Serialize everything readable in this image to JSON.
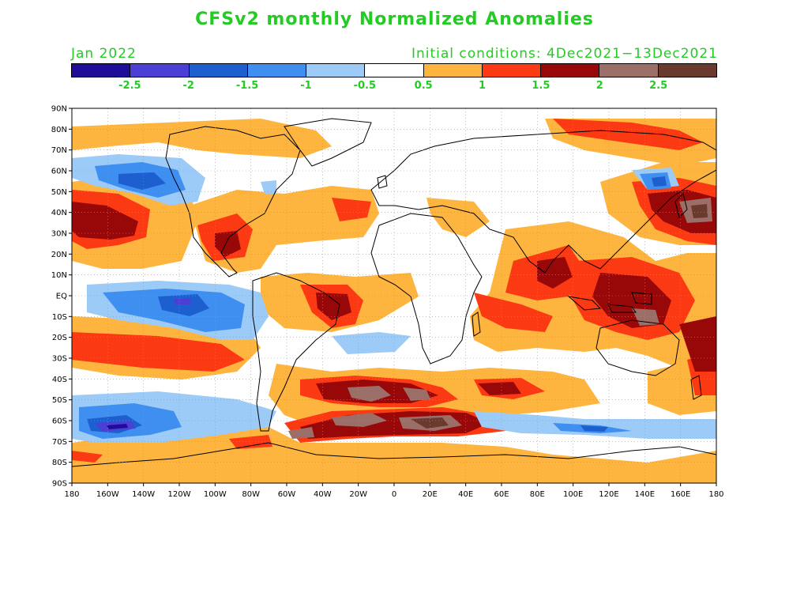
{
  "title": "CFSv2 monthly Normalized Anomalies",
  "month": "Jan 2022",
  "initial_conditions": "Initial conditions: 4Dec2021−13Dec2021",
  "text_color": "#22cc22",
  "colorbar": {
    "colors": [
      "#1f0c99",
      "#4b3fd6",
      "#1e5fd0",
      "#3f8ff0",
      "#9ccbf7",
      "#ffffff",
      "#fdb53f",
      "#fb3a14",
      "#990808",
      "#9b6e68",
      "#6a3a2e"
    ],
    "labels": [
      "-2.5",
      "-2",
      "-1.5",
      "-1",
      "-0.5",
      "0.5",
      "1",
      "1.5",
      "2",
      "2.5"
    ]
  },
  "axes": {
    "lat_labels": [
      "90N",
      "80N",
      "70N",
      "60N",
      "50N",
      "40N",
      "30N",
      "20N",
      "10N",
      "EQ",
      "10S",
      "20S",
      "30S",
      "40S",
      "50S",
      "60S",
      "70S",
      "80S",
      "90S"
    ],
    "lon_labels": [
      "180",
      "160W",
      "140W",
      "120W",
      "100W",
      "80W",
      "60W",
      "40W",
      "20W",
      "0",
      "20E",
      "40E",
      "60E",
      "80E",
      "100E",
      "120E",
      "140E",
      "160E",
      "180"
    ]
  }
}
